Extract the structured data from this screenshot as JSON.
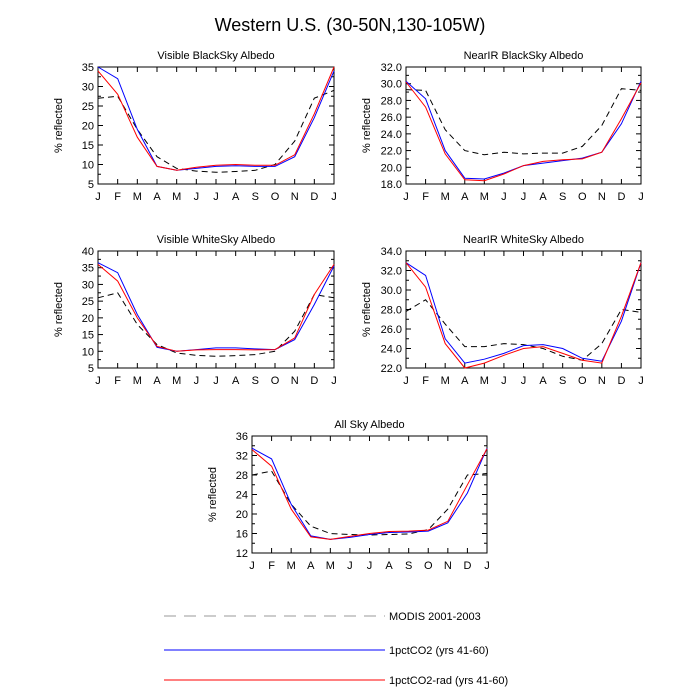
{
  "figure": {
    "title": "Western U.S. (30-50N,130-105W)"
  },
  "colors": {
    "MODIS": "#000000",
    "CO2": "#0000ff",
    "CO2rad": "#ff0000",
    "legend_MODIS": "#999999"
  },
  "legend": [
    {
      "key": "MODIS",
      "label": "MODIS 2001-2003",
      "dash": true
    },
    {
      "key": "CO2",
      "label": "1pctCO2 (yrs 41-60)",
      "dash": false
    },
    {
      "key": "CO2rad",
      "label": "1pctCO2-rad (yrs 41-60)",
      "dash": false
    }
  ],
  "chart_data": [
    {
      "type": "line",
      "title": "Visible BlackSky Albedo",
      "ylabel": "% reflected",
      "categories": [
        "J",
        "F",
        "M",
        "A",
        "M",
        "J",
        "J",
        "A",
        "S",
        "O",
        "N",
        "D",
        "J"
      ],
      "ylim": [
        5,
        35
      ],
      "yticks": [
        "5",
        "10",
        "15",
        "20",
        "25",
        "30",
        "35"
      ],
      "series": [
        {
          "name": "MODIS 2001-2003",
          "key": "MODIS",
          "values": [
            27,
            27.5,
            19,
            12,
            9,
            8.3,
            8,
            8.2,
            8.5,
            10,
            16,
            27,
            29
          ]
        },
        {
          "name": "1pctCO2 (yrs 41-60)",
          "key": "CO2",
          "values": [
            35,
            32,
            19,
            9.5,
            8.5,
            9,
            9.5,
            9.7,
            9.5,
            9.5,
            12,
            22,
            34
          ]
        },
        {
          "name": "1pctCO2-rad (yrs 41-60)",
          "key": "CO2rad",
          "values": [
            34,
            28,
            17,
            9.5,
            8.5,
            9.3,
            9.8,
            10,
            9.8,
            9.8,
            12.5,
            23,
            35
          ]
        }
      ]
    },
    {
      "type": "line",
      "title": "NearIR BlackSky Albedo",
      "ylabel": "% reflected",
      "categories": [
        "J",
        "F",
        "M",
        "A",
        "M",
        "J",
        "J",
        "A",
        "S",
        "O",
        "N",
        "D",
        "J"
      ],
      "ylim": [
        18,
        32
      ],
      "yticks": [
        "18.0",
        "20.0",
        "22.0",
        "24.0",
        "26.0",
        "28.0",
        "30.0",
        "32.0"
      ],
      "series": [
        {
          "name": "MODIS 2001-2003",
          "key": "MODIS",
          "values": [
            29.3,
            29.2,
            24.5,
            22,
            21.5,
            21.8,
            21.6,
            21.7,
            21.7,
            22.5,
            25,
            29.4,
            29.2
          ]
        },
        {
          "name": "1pctCO2 (yrs 41-60)",
          "key": "CO2",
          "values": [
            30.3,
            28.2,
            22,
            18.7,
            18.6,
            19.3,
            20.2,
            20.5,
            20.8,
            21.1,
            21.8,
            25.2,
            30.3
          ]
        },
        {
          "name": "1pctCO2-rad (yrs 41-60)",
          "key": "CO2rad",
          "values": [
            30.2,
            27.2,
            21.6,
            18.5,
            18.4,
            19.2,
            20.2,
            20.7,
            20.9,
            21,
            21.8,
            25.8,
            30.1
          ]
        }
      ]
    },
    {
      "type": "line",
      "title": "Visible WhiteSky Albedo",
      "ylabel": "% reflected",
      "categories": [
        "J",
        "F",
        "M",
        "A",
        "M",
        "J",
        "J",
        "A",
        "S",
        "O",
        "N",
        "D",
        "J"
      ],
      "ylim": [
        5,
        40
      ],
      "yticks": [
        "5",
        "10",
        "15",
        "20",
        "25",
        "30",
        "35",
        "40"
      ],
      "series": [
        {
          "name": "MODIS 2001-2003",
          "key": "MODIS",
          "values": [
            26,
            27.5,
            18,
            12,
            9.5,
            8.8,
            8.5,
            8.7,
            9,
            10,
            16,
            27,
            26
          ]
        },
        {
          "name": "1pctCO2 (yrs 41-60)",
          "key": "CO2",
          "values": [
            36.5,
            33.5,
            21,
            11.2,
            10,
            10.5,
            11,
            11,
            10.7,
            10.5,
            13.5,
            24,
            35.5
          ]
        },
        {
          "name": "1pctCO2-rad (yrs 41-60)",
          "key": "CO2rad",
          "values": [
            36,
            31,
            20,
            11.5,
            10,
            10.4,
            10.5,
            10.5,
            10.4,
            10.5,
            14,
            27,
            36
          ]
        }
      ]
    },
    {
      "type": "line",
      "title": "NearIR WhiteSky Albedo",
      "ylabel": "% reflected",
      "categories": [
        "J",
        "F",
        "M",
        "A",
        "M",
        "J",
        "J",
        "A",
        "S",
        "O",
        "N",
        "D",
        "J"
      ],
      "ylim": [
        22,
        34
      ],
      "yticks": [
        "22.0",
        "24.0",
        "26.0",
        "28.0",
        "30.0",
        "32.0",
        "34.0"
      ],
      "series": [
        {
          "name": "MODIS 2001-2003",
          "key": "MODIS",
          "values": [
            27.8,
            29,
            26.5,
            24.2,
            24.2,
            24.5,
            24.4,
            24,
            23.2,
            22.8,
            24.5,
            28,
            27.7
          ]
        },
        {
          "name": "1pctCO2 (yrs 41-60)",
          "key": "CO2",
          "values": [
            32.8,
            31.5,
            25,
            22.5,
            22.9,
            23.5,
            24.3,
            24.4,
            24,
            23,
            22.7,
            26.8,
            32.8
          ]
        },
        {
          "name": "1pctCO2-rad (yrs 41-60)",
          "key": "CO2rad",
          "values": [
            32.8,
            30.3,
            24.5,
            22,
            22.5,
            23.3,
            24,
            24.2,
            23.5,
            22.8,
            22.5,
            27.3,
            32.8
          ]
        }
      ]
    },
    {
      "type": "line",
      "title": "All Sky Albedo",
      "ylabel": "% reflected",
      "categories": [
        "J",
        "F",
        "M",
        "A",
        "M",
        "J",
        "J",
        "A",
        "S",
        "O",
        "N",
        "D",
        "J"
      ],
      "ylim": [
        12,
        36
      ],
      "yticks": [
        "12",
        "16",
        "20",
        "24",
        "28",
        "32",
        "36"
      ],
      "series": [
        {
          "name": "MODIS 2001-2003",
          "key": "MODIS",
          "values": [
            28,
            28.8,
            22,
            17.5,
            16,
            15.8,
            15.7,
            15.8,
            15.9,
            16.8,
            21,
            28,
            28.3
          ]
        },
        {
          "name": "1pctCO2 (yrs 41-60)",
          "key": "CO2",
          "values": [
            33.5,
            31.3,
            22,
            15.5,
            14.8,
            15.2,
            15.8,
            16.2,
            16.3,
            16.5,
            18.2,
            24.3,
            33.5
          ]
        },
        {
          "name": "1pctCO2-rad (yrs 41-60)",
          "key": "CO2rad",
          "values": [
            33.2,
            29.8,
            21,
            15.3,
            14.8,
            15.4,
            16,
            16.4,
            16.5,
            16.7,
            18.5,
            26,
            33.4
          ]
        }
      ]
    }
  ]
}
